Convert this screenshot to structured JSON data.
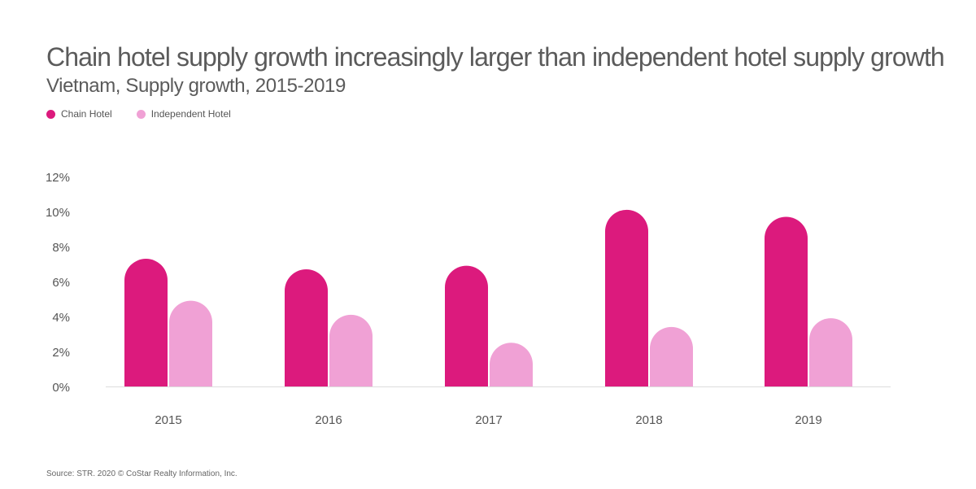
{
  "chart_data": {
    "type": "bar",
    "title": "Chain hotel supply growth increasingly larger than independent hotel supply growth",
    "subtitle": "Vietnam, Supply growth, 2015-2019",
    "categories": [
      "2015",
      "2016",
      "2017",
      "2018",
      "2019"
    ],
    "series": [
      {
        "name": "Chain Hotel",
        "color": "#dc1a7d",
        "values": [
          7.3,
          6.7,
          6.9,
          10.1,
          9.7
        ]
      },
      {
        "name": "Independent Hotel",
        "color": "#f0a1d5",
        "values": [
          4.9,
          4.1,
          2.5,
          3.4,
          3.9
        ]
      }
    ],
    "y_ticks": [
      "0%",
      "2%",
      "4%",
      "6%",
      "8%",
      "10%",
      "12%"
    ],
    "ylim": [
      0,
      12
    ],
    "xlabel": "",
    "ylabel": "",
    "source": "Source: STR. 2020 © CoStar Realty Information, Inc."
  }
}
